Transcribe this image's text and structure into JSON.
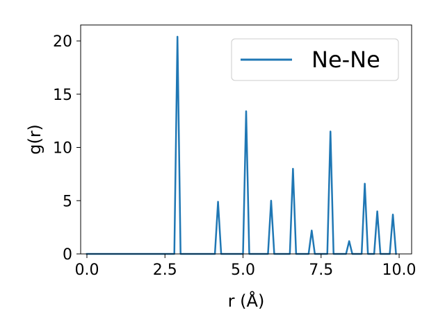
{
  "chart_data": {
    "type": "line",
    "title": "",
    "xlabel": "r (Å)",
    "ylabel": "g(r)",
    "xlim": [
      -0.2,
      10.4
    ],
    "ylim": [
      0,
      21.5
    ],
    "xticks": [
      0.0,
      2.5,
      5.0,
      7.5,
      10.0
    ],
    "xtick_labels": [
      "0.0",
      "2.5",
      "5.0",
      "7.5",
      "10.0"
    ],
    "yticks": [
      0,
      5,
      10,
      15,
      20
    ],
    "ytick_labels": [
      "0",
      "5",
      "10",
      "15",
      "20"
    ],
    "grid": false,
    "legend_position": "top-right",
    "series": [
      {
        "name": "Ne-Ne",
        "color": "#1f77b4",
        "x": [
          0.0,
          2.8,
          2.9,
          3.0,
          4.1,
          4.2,
          4.3,
          4.9,
          5.0,
          5.1,
          5.2,
          5.8,
          5.9,
          6.0,
          6.5,
          6.6,
          6.7,
          7.1,
          7.2,
          7.3,
          7.7,
          7.8,
          7.9,
          8.3,
          8.4,
          8.5,
          8.8,
          8.9,
          9.0,
          9.2,
          9.3,
          9.4,
          9.7,
          9.8,
          9.9
        ],
        "y": [
          0,
          0,
          20.4,
          0,
          0,
          4.9,
          0,
          0,
          0,
          13.4,
          0,
          0,
          5.0,
          0,
          0,
          8.0,
          0,
          0,
          2.2,
          0,
          0,
          11.5,
          0,
          0,
          1.2,
          0,
          0,
          6.6,
          0,
          0,
          4.0,
          0,
          0,
          3.7,
          0
        ]
      }
    ]
  }
}
